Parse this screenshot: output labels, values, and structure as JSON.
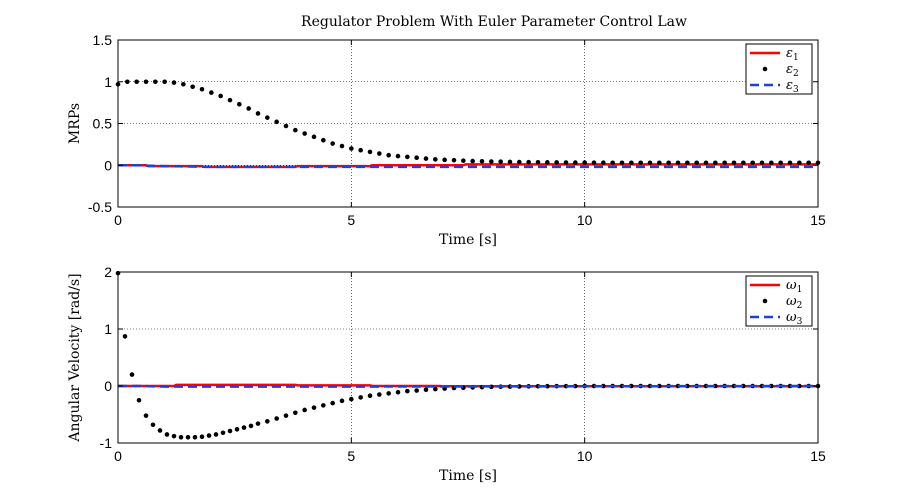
{
  "figure": {
    "title": "Regulator Problem With Euler Parameter Control Law"
  },
  "chart_data": [
    {
      "type": "line",
      "ylabel": "MRPs",
      "xlabel": "Time [s]",
      "xlim": [
        0,
        15
      ],
      "ylim": [
        -0.5,
        1.5
      ],
      "xticks": [
        "0",
        "5",
        "10",
        "15"
      ],
      "yticks": [
        "-0.5",
        "0",
        "0.5",
        "1",
        "1.5"
      ],
      "grid": true,
      "legend_position": "top-right",
      "series": [
        {
          "name": "ε1",
          "name_base": "ε",
          "name_sub": "1",
          "style": "solid",
          "color": "#ff0000",
          "x": [
            0,
            0.6,
            0.65,
            1.8,
            1.85,
            3.8,
            3.85,
            5.4,
            5.45,
            7.4,
            7.45,
            15
          ],
          "y": [
            0.0,
            0.0,
            -0.01,
            -0.01,
            -0.02,
            -0.02,
            -0.01,
            -0.01,
            0.0,
            0.0,
            0.01,
            0.01
          ]
        },
        {
          "name": "ε2",
          "name_base": "ε",
          "name_sub": "2",
          "style": "dots",
          "color": "#000000",
          "x": [
            0,
            0.2,
            0.4,
            0.6,
            0.8,
            1.0,
            1.2,
            1.4,
            1.6,
            1.8,
            2.0,
            2.2,
            2.4,
            2.6,
            2.8,
            3.0,
            3.2,
            3.4,
            3.6,
            3.8,
            4.0,
            4.2,
            4.4,
            4.6,
            4.8,
            5.0,
            5.2,
            5.4,
            5.6,
            5.8,
            6.0,
            6.2,
            6.4,
            6.6,
            6.8,
            7.0,
            7.2,
            7.4,
            7.6,
            7.8,
            8.0,
            8.2,
            8.4,
            8.6,
            8.8,
            9.0,
            9.2,
            9.4,
            9.6,
            9.8,
            10.0,
            10.2,
            10.4,
            10.6,
            10.8,
            11.0,
            11.2,
            11.4,
            11.6,
            11.8,
            12.0,
            12.2,
            12.4,
            12.6,
            12.8,
            13.0,
            13.2,
            13.4,
            13.6,
            13.8,
            14.0,
            14.2,
            14.4,
            14.6,
            14.8,
            15.0
          ],
          "y": [
            0.97,
            1.0,
            1.0,
            1.0,
            1.0,
            1.0,
            0.99,
            0.97,
            0.94,
            0.91,
            0.87,
            0.83,
            0.78,
            0.73,
            0.68,
            0.62,
            0.57,
            0.52,
            0.47,
            0.42,
            0.38,
            0.34,
            0.3,
            0.26,
            0.23,
            0.2,
            0.18,
            0.16,
            0.14,
            0.12,
            0.11,
            0.1,
            0.09,
            0.08,
            0.07,
            0.065,
            0.06,
            0.055,
            0.05,
            0.048,
            0.045,
            0.043,
            0.04,
            0.038,
            0.037,
            0.036,
            0.035,
            0.034,
            0.033,
            0.032,
            0.032,
            0.031,
            0.031,
            0.03,
            0.03,
            0.03,
            0.03,
            0.03,
            0.03,
            0.03,
            0.03,
            0.03,
            0.03,
            0.03,
            0.03,
            0.03,
            0.03,
            0.03,
            0.03,
            0.03,
            0.03,
            0.03,
            0.03,
            0.03,
            0.03,
            0.03
          ]
        },
        {
          "name": "ε3",
          "name_base": "ε",
          "name_sub": "3",
          "style": "dashed",
          "color": "#1f3fdf",
          "x": [
            0,
            0.4,
            1.0,
            2.0,
            5.0,
            10.0,
            15.0
          ],
          "y": [
            0.0,
            0.0,
            -0.01,
            -0.02,
            -0.02,
            -0.02,
            -0.02
          ]
        }
      ]
    },
    {
      "type": "line",
      "ylabel": "Angular Velocity [rad/s]",
      "xlabel": "Time [s]",
      "xlim": [
        0,
        15
      ],
      "ylim": [
        -1,
        2
      ],
      "xticks": [
        "0",
        "5",
        "10",
        "15"
      ],
      "yticks": [
        "-1",
        "0",
        "1",
        "2"
      ],
      "grid": true,
      "legend_position": "top-right",
      "series": [
        {
          "name": "ω1",
          "name_base": "ω",
          "name_sub": "1",
          "style": "solid",
          "color": "#ff0000",
          "x": [
            0,
            1.2,
            1.25,
            3.8,
            3.85,
            5.4,
            5.45,
            6.9,
            6.95,
            15
          ],
          "y": [
            0.0,
            0.0,
            0.02,
            0.02,
            0.01,
            0.01,
            0.0,
            0.0,
            -0.005,
            -0.005
          ]
        },
        {
          "name": "ω2",
          "name_base": "ω",
          "name_sub": "2",
          "style": "dots",
          "color": "#000000",
          "x": [
            0,
            0.15,
            0.3,
            0.45,
            0.6,
            0.75,
            0.9,
            1.05,
            1.2,
            1.35,
            1.5,
            1.65,
            1.8,
            1.95,
            2.1,
            2.25,
            2.4,
            2.55,
            2.7,
            2.85,
            3.0,
            3.2,
            3.4,
            3.6,
            3.8,
            4.0,
            4.2,
            4.4,
            4.6,
            4.8,
            5.0,
            5.2,
            5.4,
            5.6,
            5.8,
            6.0,
            6.2,
            6.4,
            6.6,
            6.8,
            7.0,
            7.2,
            7.4,
            7.6,
            7.8,
            8.0,
            8.2,
            8.4,
            8.6,
            8.8,
            9.0,
            9.2,
            9.4,
            9.6,
            9.8,
            10.0,
            10.2,
            10.4,
            10.6,
            10.8,
            11.0,
            11.2,
            11.4,
            11.6,
            11.8,
            12.0,
            12.2,
            12.4,
            12.6,
            12.8,
            13.0,
            13.2,
            13.4,
            13.6,
            13.8,
            14.0,
            14.2,
            14.4,
            14.6,
            14.8,
            15.0
          ],
          "y": [
            1.98,
            0.87,
            0.2,
            -0.25,
            -0.52,
            -0.68,
            -0.78,
            -0.85,
            -0.88,
            -0.9,
            -0.9,
            -0.9,
            -0.89,
            -0.87,
            -0.85,
            -0.82,
            -0.79,
            -0.76,
            -0.73,
            -0.7,
            -0.66,
            -0.62,
            -0.57,
            -0.52,
            -0.47,
            -0.42,
            -0.38,
            -0.34,
            -0.3,
            -0.26,
            -0.23,
            -0.2,
            -0.17,
            -0.15,
            -0.13,
            -0.11,
            -0.09,
            -0.08,
            -0.065,
            -0.055,
            -0.045,
            -0.035,
            -0.03,
            -0.025,
            -0.02,
            -0.015,
            -0.012,
            -0.01,
            -0.008,
            -0.006,
            -0.005,
            -0.004,
            -0.003,
            -0.002,
            -0.002,
            -0.001,
            -0.001,
            -0.001,
            0.0,
            0.0,
            0.0,
            0.0,
            0.0,
            0.0,
            0.0,
            0.0,
            0.0,
            0.0,
            0.0,
            0.0,
            0.0,
            0.0,
            0.0,
            0.0,
            0.0,
            0.0,
            0.0,
            0.0,
            0.0,
            0.0,
            0.0
          ]
        },
        {
          "name": "ω3",
          "name_base": "ω",
          "name_sub": "3",
          "style": "dashed",
          "color": "#1f3fdf",
          "x": [
            0,
            0.5,
            1.0,
            2.0,
            5.0,
            10.0,
            15.0
          ],
          "y": [
            0.0,
            0.0,
            -0.01,
            -0.01,
            -0.01,
            -0.005,
            0.0
          ]
        }
      ]
    }
  ]
}
